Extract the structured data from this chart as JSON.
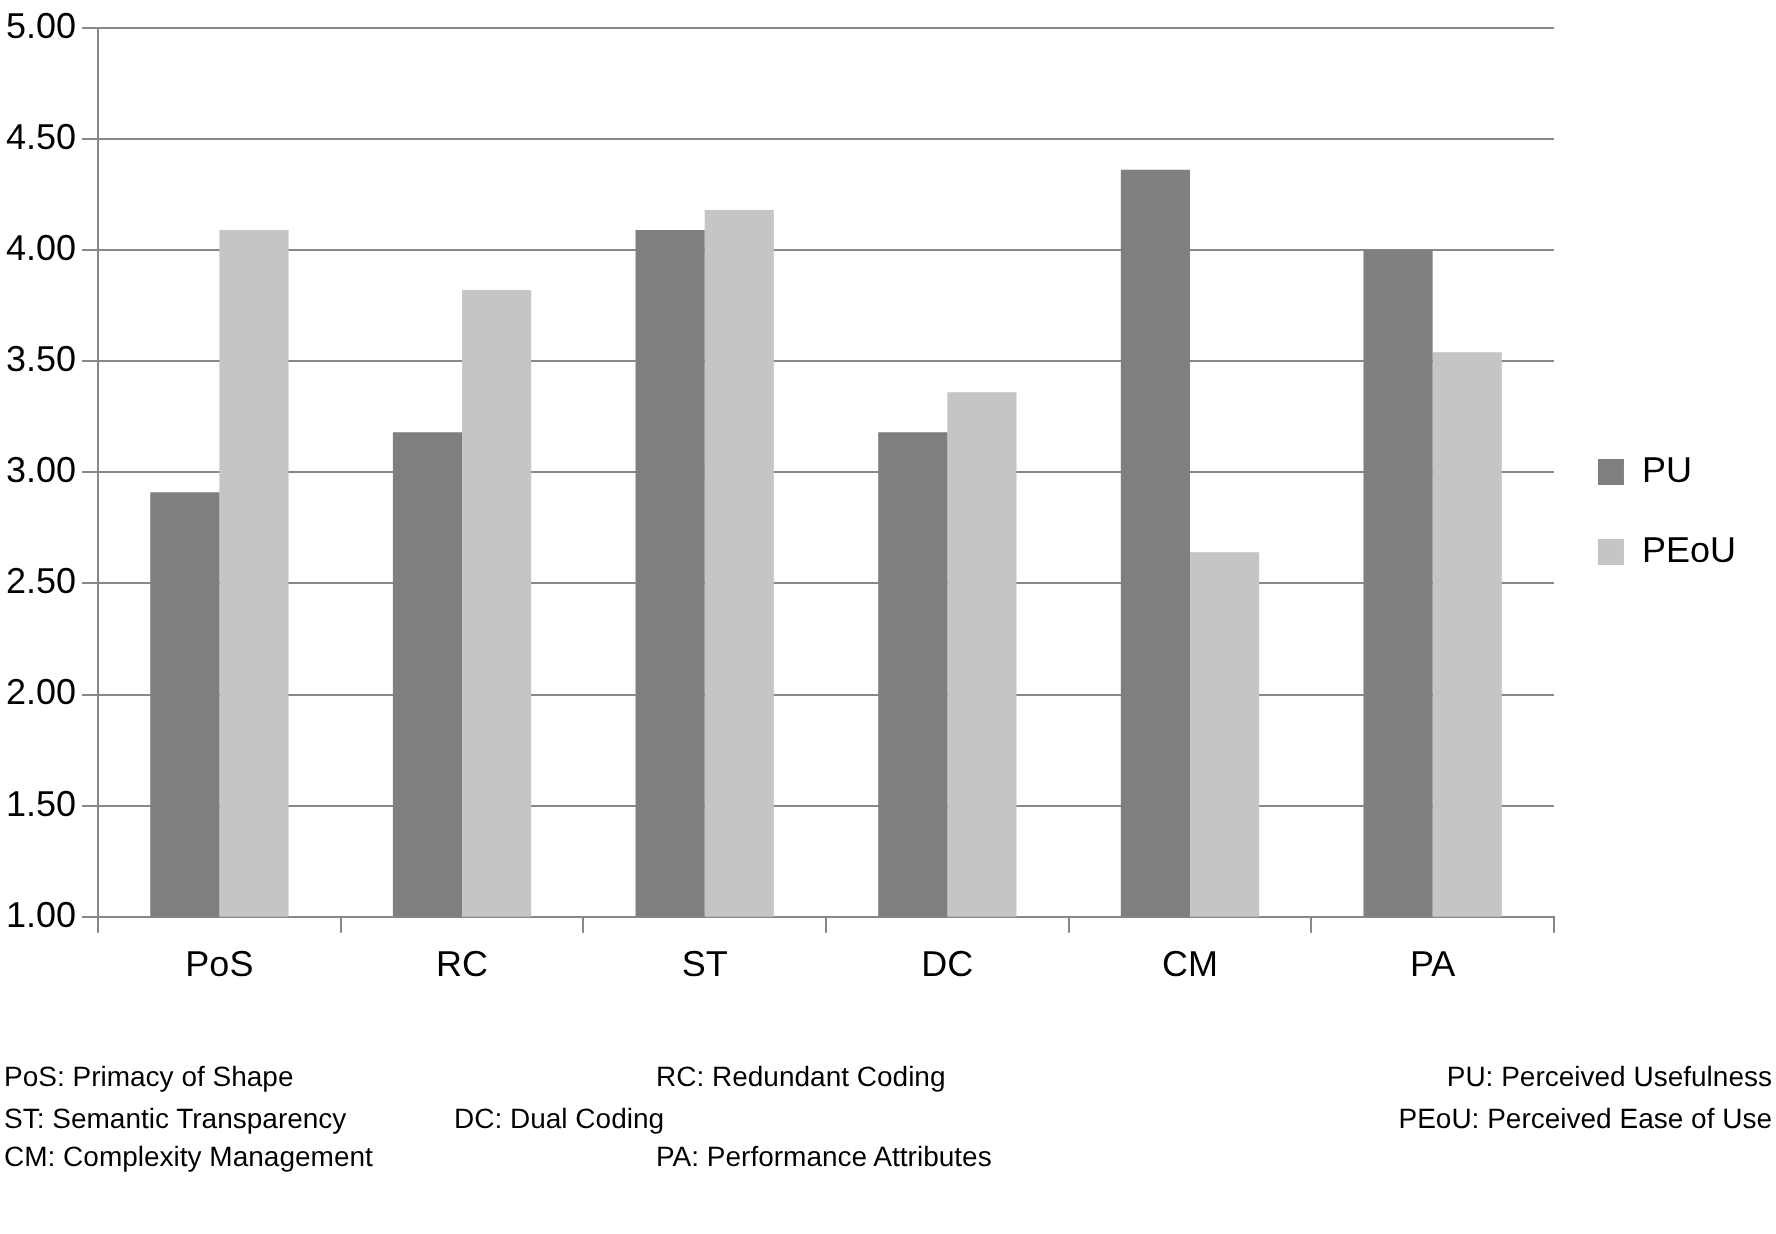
{
  "chart_data": {
    "type": "bar",
    "categories": [
      "PoS",
      "RC",
      "ST",
      "DC",
      "CM",
      "PA"
    ],
    "series": [
      {
        "name": "PU",
        "color": "#7f7f7f",
        "values": [
          2.91,
          3.18,
          4.09,
          3.18,
          4.36,
          4.0
        ]
      },
      {
        "name": "PEoU",
        "color": "#c4c5c4",
        "values": [
          4.09,
          3.82,
          4.18,
          3.36,
          2.64,
          3.54
        ]
      }
    ],
    "ylim": [
      1,
      5
    ],
    "yticks": [
      {
        "value": 1,
        "label": "1.00"
      },
      {
        "value": 1.5,
        "label": "1.50"
      },
      {
        "value": 2,
        "label": "2.00"
      },
      {
        "value": 2.5,
        "label": "2.50"
      },
      {
        "value": 3,
        "label": "3.00"
      },
      {
        "value": 3.5,
        "label": "3.50"
      },
      {
        "value": 4,
        "label": "4.00"
      },
      {
        "value": 4.5,
        "label": "4.50"
      },
      {
        "value": 5,
        "label": "5.00"
      }
    ],
    "grid": "y",
    "legend": "right",
    "annotations": [
      "PoS: Primacy of Shape",
      "RC: Redundant Coding",
      "PU: Perceived Usefulness",
      "ST: Semantic Transparency",
      "DC: Dual Coding",
      "PEoU: Perceived Ease of Use",
      "CM: Complexity Management",
      "PA: Performance Attributes"
    ]
  }
}
